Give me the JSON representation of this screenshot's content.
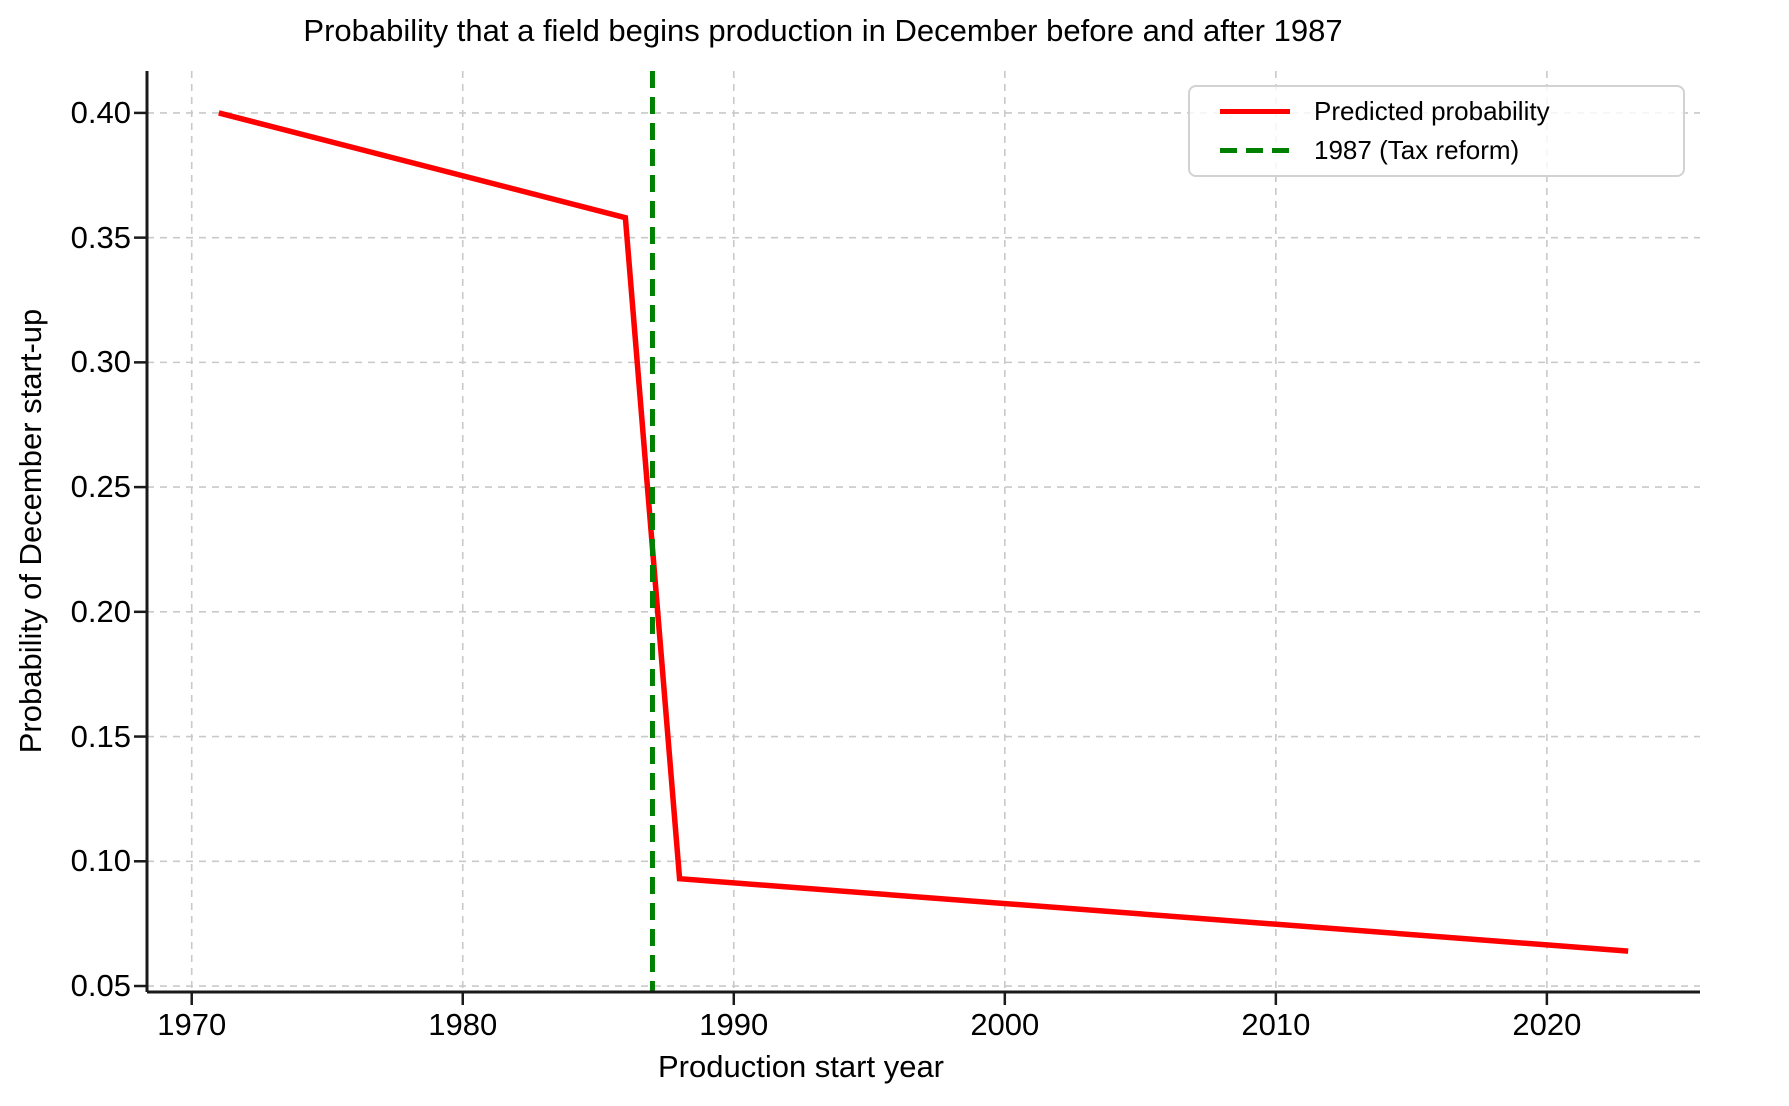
{
  "chart_data": {
    "type": "line",
    "title": "Probability that a field begins production in December before and after 1987",
    "xlabel": "Production start year",
    "ylabel": "Probability of December start-up",
    "xlim": [
      1968.35,
      2025.65
    ],
    "ylim": [
      0.0476,
      0.4168
    ],
    "grid": true,
    "grid_style": "dashed",
    "x_ticks": [
      1970,
      1980,
      1990,
      2000,
      2010,
      2020
    ],
    "x_tick_labels": [
      "1970",
      "1980",
      "1990",
      "2000",
      "2010",
      "2020"
    ],
    "y_ticks": [
      0.05,
      0.1,
      0.15,
      0.2,
      0.25,
      0.3,
      0.35,
      0.4
    ],
    "y_tick_labels": [
      "0.05",
      "0.10",
      "0.15",
      "0.20",
      "0.25",
      "0.30",
      "0.35",
      "0.40"
    ],
    "series": [
      {
        "name": "Predicted probability",
        "style": "solid",
        "color": "#ff0000",
        "points": [
          [
            1971,
            0.4
          ],
          [
            1986,
            0.358
          ],
          [
            1988,
            0.093
          ],
          [
            2023,
            0.064
          ]
        ]
      }
    ],
    "vlines": [
      {
        "name": "1987 (Tax reform)",
        "x": 1987,
        "style": "dashed",
        "color": "#008000"
      }
    ],
    "legend": [
      {
        "label": "Predicted probability",
        "color": "#ff0000",
        "style": "solid"
      },
      {
        "label": "1987 (Tax reform)",
        "color": "#008000",
        "style": "dashed"
      }
    ],
    "legend_position": "upper right",
    "colors": {
      "grid": "#c9c9c9",
      "spine": "#1a1a1a",
      "text": "#000000",
      "legend_border": "#d2d2d2",
      "background": "#ffffff"
    }
  }
}
